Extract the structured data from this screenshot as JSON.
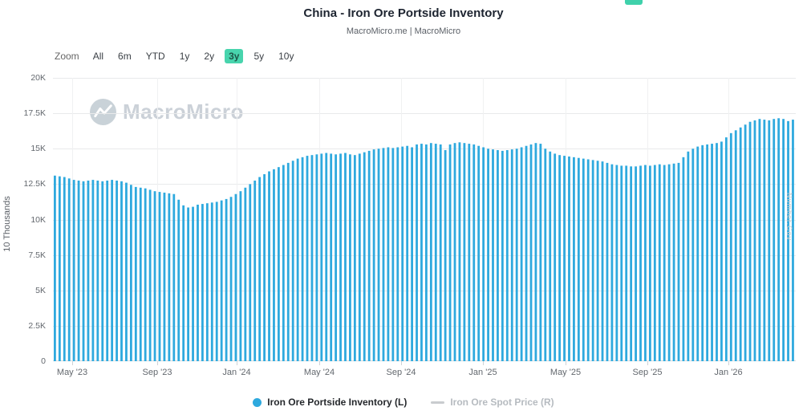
{
  "colors": {
    "bar": "#2ea9de",
    "active_range_bg": "#48d4ad",
    "accent_fragment": "#3fd1ab",
    "disabled_marker": "#c9cccf"
  },
  "header": {
    "title": "China - Iron Ore Portside Inventory",
    "subtitle": "MacroMicro.me | MacroMicro"
  },
  "toolbar": {
    "zoom_label": "Zoom",
    "ranges": [
      "All",
      "6m",
      "YTD",
      "1y",
      "2y",
      "3y",
      "5y",
      "10y"
    ],
    "active": "3y"
  },
  "watermark": {
    "text": "MacroMicro"
  },
  "axes": {
    "y_left_title": "10 Thousands",
    "y_ticks": [
      "0",
      "2.5K",
      "5K",
      "7.5K",
      "10K",
      "12.5K",
      "15K",
      "17.5K",
      "20K"
    ],
    "y_tick_values": [
      0,
      2500,
      5000,
      7500,
      10000,
      12500,
      15000,
      17500,
      20000
    ],
    "x_ticks": [
      "May '23",
      "Sep '23",
      "Jan '24",
      "May '24",
      "Sep '24",
      "Jan '25",
      "May '25",
      "Sep '25",
      "Jan '26"
    ],
    "right_vertical_text": "Number.Cov"
  },
  "legend": [
    {
      "label": "Iron Ore Portside Inventory (L)",
      "enabled": true,
      "marker": "circle",
      "color": "#2ea9de"
    },
    {
      "label": "Iron Ore Spot Price (R)",
      "enabled": false,
      "marker": "line",
      "color": "#c9cccf"
    }
  ],
  "chart_data": {
    "type": "bar",
    "title": "China - Iron Ore Portside Inventory",
    "xlabel": "",
    "ylabel": "10 Thousands",
    "ylim": [
      0,
      20000
    ],
    "grid": true,
    "legend_position": "bottom",
    "x_tick_labels": [
      "May '23",
      "Sep '23",
      "Jan '24",
      "May '24",
      "Sep '24",
      "Jan '25",
      "May '25",
      "Sep '25",
      "Jan '26"
    ],
    "frequency": "weekly",
    "series": [
      {
        "name": "Iron Ore Portside Inventory (L)",
        "color": "#2ea9de",
        "values": [
          13100,
          13050,
          13000,
          12900,
          12800,
          12750,
          12700,
          12750,
          12800,
          12750,
          12700,
          12750,
          12800,
          12750,
          12700,
          12600,
          12450,
          12300,
          12250,
          12200,
          12100,
          12000,
          11950,
          11900,
          11850,
          11800,
          11400,
          11000,
          10850,
          10900,
          11050,
          11100,
          11150,
          11200,
          11250,
          11350,
          11450,
          11600,
          11800,
          12000,
          12250,
          12500,
          12750,
          13000,
          13200,
          13400,
          13550,
          13700,
          13850,
          14000,
          14150,
          14300,
          14400,
          14500,
          14550,
          14600,
          14650,
          14700,
          14650,
          14600,
          14650,
          14700,
          14600,
          14550,
          14650,
          14750,
          14850,
          14950,
          15000,
          15050,
          15100,
          15050,
          15100,
          15150,
          15200,
          15100,
          15300,
          15350,
          15300,
          15400,
          15350,
          15300,
          14900,
          15300,
          15400,
          15450,
          15400,
          15350,
          15300,
          15200,
          15100,
          15000,
          14950,
          14900,
          14850,
          14900,
          14950,
          15000,
          15100,
          15200,
          15300,
          15400,
          15350,
          15000,
          14800,
          14650,
          14550,
          14500,
          14450,
          14400,
          14350,
          14300,
          14250,
          14200,
          14150,
          14100,
          14000,
          13900,
          13850,
          13800,
          13800,
          13750,
          13750,
          13800,
          13850,
          13800,
          13850,
          13900,
          13850,
          13900,
          13950,
          14000,
          14400,
          14800,
          15000,
          15150,
          15250,
          15300,
          15350,
          15400,
          15500,
          15800,
          16100,
          16300,
          16500,
          16700,
          16900,
          17000,
          17100,
          17050,
          17000,
          17100,
          17150,
          17100,
          16950,
          17050
        ]
      }
    ],
    "hidden_series": [
      "Iron Ore Spot Price (R)"
    ]
  }
}
